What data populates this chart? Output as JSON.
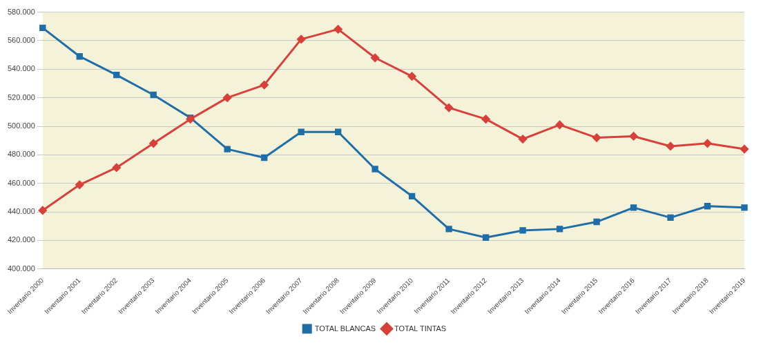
{
  "chart_data": {
    "type": "line",
    "categories": [
      "Inventario 2000",
      "Inventario 2001",
      "Inventario 2002",
      "Inventario 2003",
      "Inventario 2004",
      "Inventario 2005",
      "Inventario 2006",
      "Inventario 2007",
      "Inventario 2008",
      "Inventario 2009",
      "Inventario 2010",
      "Inventario 2011",
      "Inventario 2012",
      "Inventario 2013",
      "Inventario 2014",
      "Inventario 2015",
      "Inventario 2016",
      "Inventario 2017",
      "Inventario 2018",
      "Inventario 2019"
    ],
    "series": [
      {
        "name": "TOTAL BLANCAS",
        "color": "#1f6ea8",
        "marker": "square",
        "values": [
          569000,
          549000,
          536000,
          522000,
          506000,
          484000,
          478000,
          496000,
          496000,
          470000,
          451000,
          428000,
          422000,
          427000,
          428000,
          433000,
          443000,
          436000,
          444000,
          443000
        ]
      },
      {
        "name": "TOTAL TINTAS",
        "color": "#d8403a",
        "marker": "diamond",
        "values": [
          441000,
          459000,
          471000,
          488000,
          505000,
          520000,
          529000,
          561000,
          568000,
          548000,
          535000,
          513000,
          505000,
          491000,
          501000,
          492000,
          493000,
          486000,
          488000,
          484000
        ]
      }
    ],
    "ylim": [
      400000,
      580000
    ],
    "yticks": [
      {
        "value": 400000,
        "label": "400.000"
      },
      {
        "value": 420000,
        "label": "420.000"
      },
      {
        "value": 440000,
        "label": "440.000"
      },
      {
        "value": 460000,
        "label": "460.000"
      },
      {
        "value": 480000,
        "label": "480.000"
      },
      {
        "value": 500000,
        "label": "500.000"
      },
      {
        "value": 520000,
        "label": "520.000"
      },
      {
        "value": 540000,
        "label": "540.000"
      },
      {
        "value": 560000,
        "label": "560.000"
      },
      {
        "value": 580000,
        "label": "580.000"
      }
    ],
    "grid": "y",
    "legend": "bottom",
    "line_style": "solid"
  }
}
